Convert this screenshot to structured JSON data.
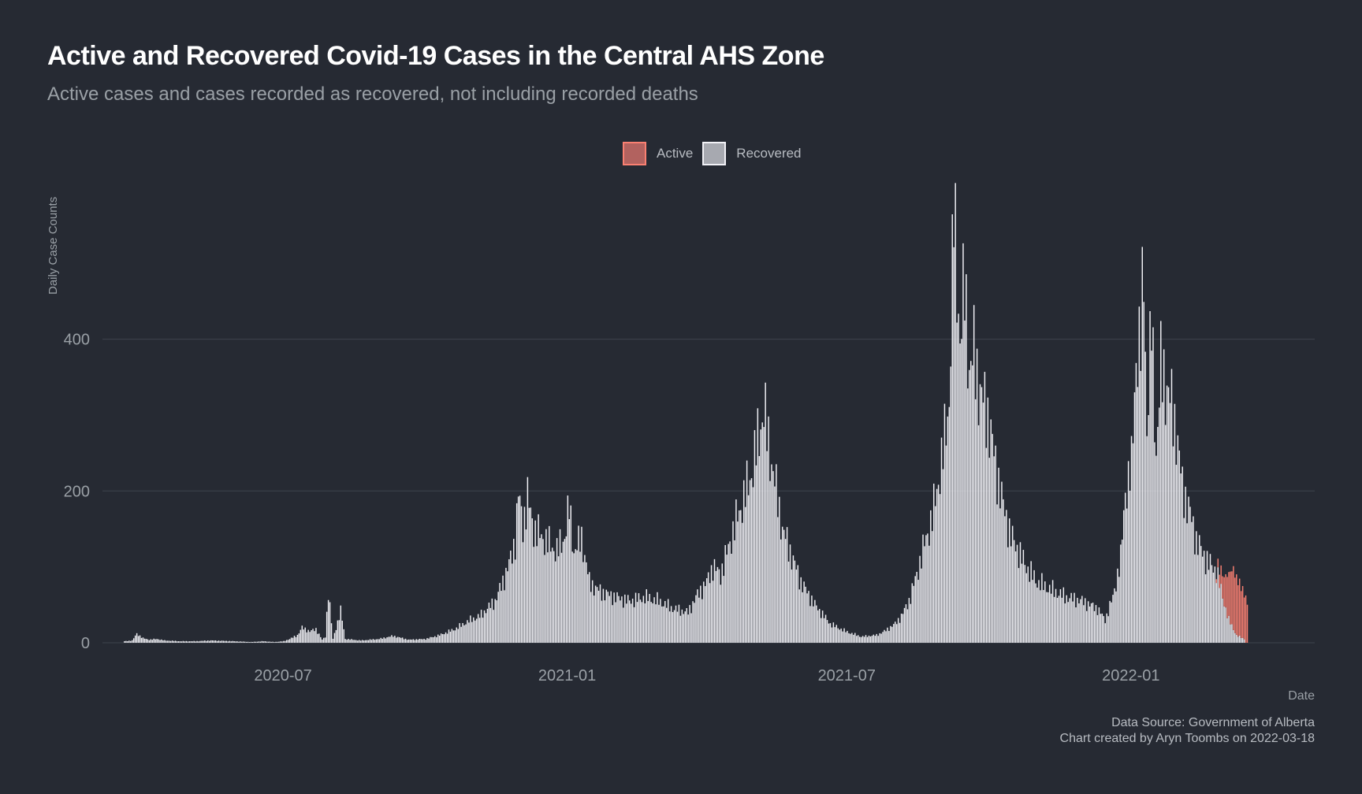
{
  "title": "Active and Recovered Covid-19 Cases in the Central AHS Zone",
  "subtitle": "Active cases and cases recorded as recovered, not including recorded deaths",
  "legend": {
    "active_label": "Active",
    "recovered_label": "Recovered"
  },
  "caption": {
    "line1": "Data Source: Government of Alberta",
    "line2": "Chart created by Aryn Toombs on 2022-03-18"
  },
  "colors": {
    "background": "#262a33",
    "active": "#fa8072",
    "active_swatch": "#b2625f",
    "recovered": "#f2f2f7",
    "recovered_swatch": "#a7a9b0",
    "grid": "#3f444e",
    "text": "#b8bcc2"
  },
  "chart_data": {
    "type": "bar",
    "stacked": true,
    "title": "Active and Recovered Covid-19 Cases in the Central AHS Zone",
    "subtitle": "Active cases and cases recorded as recovered, not including recorded deaths",
    "xlabel": "Date",
    "ylabel": "Daily Case Counts",
    "x_range": [
      "2020-03-01",
      "2022-04-30"
    ],
    "ylim": [
      0,
      575
    ],
    "y_ticks": [
      0,
      200,
      400
    ],
    "x_ticks": [
      "2020-07",
      "2021-01",
      "2021-07",
      "2022-01"
    ],
    "legend_position": "top",
    "series": [
      {
        "name": "Recovered",
        "color": "#f2f2f7",
        "points": [
          [
            "2020-03-20",
            2
          ],
          [
            "2020-03-25",
            3
          ],
          [
            "2020-03-28",
            12
          ],
          [
            "2020-04-01",
            6
          ],
          [
            "2020-04-05",
            4
          ],
          [
            "2020-04-10",
            5
          ],
          [
            "2020-04-15",
            3
          ],
          [
            "2020-04-25",
            2
          ],
          [
            "2020-05-05",
            2
          ],
          [
            "2020-05-15",
            3
          ],
          [
            "2020-05-30",
            2
          ],
          [
            "2020-06-10",
            1
          ],
          [
            "2020-06-18",
            2
          ],
          [
            "2020-06-25",
            1
          ],
          [
            "2020-07-01",
            2
          ],
          [
            "2020-07-05",
            5
          ],
          [
            "2020-07-10",
            10
          ],
          [
            "2020-07-13",
            20
          ],
          [
            "2020-07-18",
            15
          ],
          [
            "2020-07-22",
            18
          ],
          [
            "2020-07-26",
            4
          ],
          [
            "2020-07-28",
            8
          ],
          [
            "2020-07-30",
            68
          ],
          [
            "2020-08-02",
            5
          ],
          [
            "2020-08-07",
            42
          ],
          [
            "2020-08-10",
            5
          ],
          [
            "2020-08-20",
            3
          ],
          [
            "2020-09-01",
            5
          ],
          [
            "2020-09-10",
            9
          ],
          [
            "2020-09-20",
            4
          ],
          [
            "2020-10-01",
            5
          ],
          [
            "2020-10-10",
            10
          ],
          [
            "2020-10-20",
            18
          ],
          [
            "2020-10-30",
            30
          ],
          [
            "2020-11-05",
            35
          ],
          [
            "2020-11-10",
            45
          ],
          [
            "2020-11-15",
            55
          ],
          [
            "2020-11-20",
            80
          ],
          [
            "2020-11-25",
            110
          ],
          [
            "2020-11-28",
            135
          ],
          [
            "2020-11-30",
            196
          ],
          [
            "2020-12-03",
            155
          ],
          [
            "2020-12-06",
            190
          ],
          [
            "2020-12-10",
            150
          ],
          [
            "2020-12-15",
            140
          ],
          [
            "2020-12-20",
            130
          ],
          [
            "2020-12-25",
            120
          ],
          [
            "2020-12-30",
            140
          ],
          [
            "2021-01-02",
            178
          ],
          [
            "2021-01-05",
            120
          ],
          [
            "2021-01-10",
            138
          ],
          [
            "2021-01-15",
            80
          ],
          [
            "2021-01-20",
            70
          ],
          [
            "2021-01-25",
            65
          ],
          [
            "2021-02-01",
            60
          ],
          [
            "2021-02-10",
            55
          ],
          [
            "2021-02-20",
            60
          ],
          [
            "2021-03-01",
            55
          ],
          [
            "2021-03-10",
            45
          ],
          [
            "2021-03-20",
            40
          ],
          [
            "2021-03-25",
            60
          ],
          [
            "2021-04-01",
            80
          ],
          [
            "2021-04-05",
            100
          ],
          [
            "2021-04-10",
            90
          ],
          [
            "2021-04-15",
            125
          ],
          [
            "2021-04-20",
            160
          ],
          [
            "2021-04-25",
            190
          ],
          [
            "2021-05-01",
            230
          ],
          [
            "2021-05-05",
            278
          ],
          [
            "2021-05-08",
            305
          ],
          [
            "2021-05-12",
            250
          ],
          [
            "2021-05-16",
            200
          ],
          [
            "2021-05-20",
            150
          ],
          [
            "2021-05-25",
            120
          ],
          [
            "2021-06-01",
            80
          ],
          [
            "2021-06-10",
            50
          ],
          [
            "2021-06-20",
            25
          ],
          [
            "2021-06-30",
            15
          ],
          [
            "2021-07-10",
            8
          ],
          [
            "2021-07-20",
            10
          ],
          [
            "2021-07-25",
            15
          ],
          [
            "2021-08-01",
            25
          ],
          [
            "2021-08-05",
            35
          ],
          [
            "2021-08-10",
            55
          ],
          [
            "2021-08-15",
            90
          ],
          [
            "2021-08-20",
            130
          ],
          [
            "2021-08-25",
            165
          ],
          [
            "2021-09-01",
            250
          ],
          [
            "2021-09-05",
            320
          ],
          [
            "2021-09-08",
            567
          ],
          [
            "2021-09-12",
            400
          ],
          [
            "2021-09-15",
            470
          ],
          [
            "2021-09-18",
            360
          ],
          [
            "2021-09-21",
            380
          ],
          [
            "2021-09-25",
            330
          ],
          [
            "2021-09-30",
            300
          ],
          [
            "2021-10-05",
            235
          ],
          [
            "2021-10-10",
            180
          ],
          [
            "2021-10-15",
            140
          ],
          [
            "2021-10-20",
            120
          ],
          [
            "2021-10-25",
            100
          ],
          [
            "2021-11-01",
            80
          ],
          [
            "2021-11-10",
            70
          ],
          [
            "2021-11-20",
            60
          ],
          [
            "2021-11-30",
            55
          ],
          [
            "2021-12-10",
            45
          ],
          [
            "2021-12-15",
            30
          ],
          [
            "2021-12-20",
            60
          ],
          [
            "2021-12-25",
            110
          ],
          [
            "2021-12-28",
            200
          ],
          [
            "2022-01-01",
            230
          ],
          [
            "2022-01-04",
            380
          ],
          [
            "2022-01-07",
            390
          ],
          [
            "2022-01-09",
            500
          ],
          [
            "2022-01-11",
            280
          ],
          [
            "2022-01-14",
            420
          ],
          [
            "2022-01-17",
            250
          ],
          [
            "2022-01-20",
            360
          ],
          [
            "2022-01-25",
            330
          ],
          [
            "2022-01-30",
            280
          ],
          [
            "2022-02-03",
            205
          ],
          [
            "2022-02-08",
            170
          ],
          [
            "2022-02-12",
            135
          ],
          [
            "2022-02-16",
            118
          ],
          [
            "2022-02-20",
            105
          ],
          [
            "2022-02-25",
            95
          ],
          [
            "2022-03-01",
            60
          ],
          [
            "2022-03-05",
            30
          ],
          [
            "2022-03-10",
            10
          ],
          [
            "2022-03-15",
            5
          ]
        ]
      },
      {
        "name": "Active",
        "color": "#fa8072",
        "points": [
          [
            "2022-02-25",
            5
          ],
          [
            "2022-03-01",
            30
          ],
          [
            "2022-03-05",
            60
          ],
          [
            "2022-03-08",
            80
          ],
          [
            "2022-03-10",
            75
          ],
          [
            "2022-03-12",
            70
          ],
          [
            "2022-03-15",
            60
          ],
          [
            "2022-03-17",
            55
          ]
        ]
      }
    ]
  }
}
